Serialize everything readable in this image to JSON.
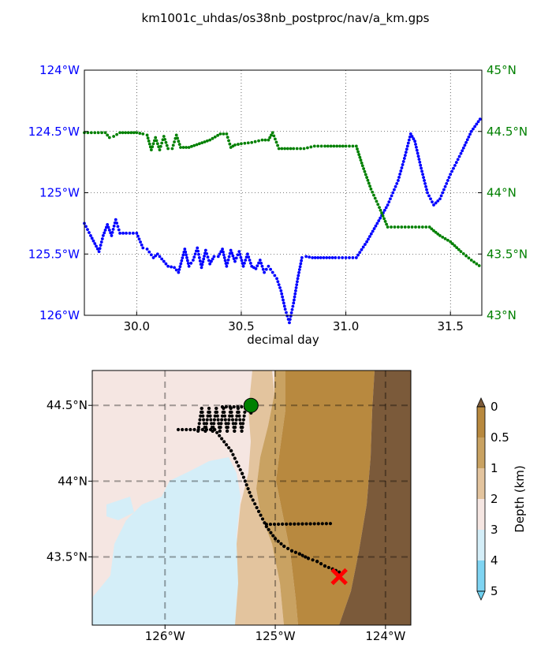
{
  "title": "km1001c_uhdas/os38nb_postproc/nav/a_km.gps",
  "chart_data": [
    {
      "type": "line",
      "xlabel": "decimal day",
      "xlim": [
        29.75,
        31.65
      ],
      "x_ticks": [
        30.0,
        30.5,
        31.0,
        31.5
      ],
      "x_tick_labels": [
        "30.0",
        "30.5",
        "31.0",
        "31.5"
      ],
      "grid": true,
      "left_axis": {
        "color": "#0000ff",
        "lim": [
          -126.0,
          -124.0
        ],
        "tick_values": [
          -124.0,
          -124.5,
          -125.0,
          -125.5,
          -126.0
        ],
        "tick_labels": [
          "124°W",
          "124.5°W",
          "125°W",
          "125.5°W",
          "126°W"
        ]
      },
      "right_axis": {
        "color": "#008000",
        "lim": [
          43.0,
          45.0
        ],
        "tick_values": [
          45.0,
          44.5,
          44.0,
          43.5,
          43.0
        ],
        "tick_labels": [
          "45°N",
          "44.5°N",
          "44°N",
          "43.5°N",
          "43°N"
        ]
      },
      "series": [
        {
          "axis": "left",
          "color": "#0000ff",
          "x": [
            29.75,
            29.78,
            29.82,
            29.84,
            29.86,
            29.88,
            29.9,
            29.92,
            29.95,
            30.0,
            30.03,
            30.05,
            30.08,
            30.1,
            30.13,
            30.15,
            30.18,
            30.2,
            30.23,
            30.25,
            30.27,
            30.29,
            30.31,
            30.33,
            30.35,
            30.37,
            30.39,
            30.41,
            30.43,
            30.45,
            30.47,
            30.49,
            30.51,
            30.53,
            30.55,
            30.57,
            30.59,
            30.61,
            30.63,
            30.65,
            30.67,
            30.69,
            30.71,
            30.73,
            30.75,
            30.77,
            30.79,
            30.81,
            30.84,
            30.88,
            30.95,
            31.0,
            31.05,
            31.1,
            31.15,
            31.2,
            31.25,
            31.28,
            31.31,
            31.33,
            31.36,
            31.39,
            31.42,
            31.45,
            31.5,
            31.55,
            31.6,
            31.65
          ],
          "y": [
            -125.25,
            -125.35,
            -125.48,
            -125.35,
            -125.26,
            -125.35,
            -125.22,
            -125.33,
            -125.33,
            -125.33,
            -125.45,
            -125.46,
            -125.53,
            -125.5,
            -125.56,
            -125.6,
            -125.61,
            -125.65,
            -125.46,
            -125.6,
            -125.55,
            -125.45,
            -125.61,
            -125.47,
            -125.58,
            -125.52,
            -125.52,
            -125.46,
            -125.6,
            -125.47,
            -125.56,
            -125.48,
            -125.6,
            -125.5,
            -125.6,
            -125.62,
            -125.55,
            -125.65,
            -125.6,
            -125.65,
            -125.7,
            -125.8,
            -125.95,
            -126.06,
            -125.9,
            -125.7,
            -125.53,
            -125.52,
            -125.53,
            -125.53,
            -125.53,
            -125.53,
            -125.53,
            -125.4,
            -125.25,
            -125.1,
            -124.9,
            -124.72,
            -124.52,
            -124.58,
            -124.8,
            -125.0,
            -125.1,
            -125.05,
            -124.85,
            -124.68,
            -124.5,
            -124.38
          ]
        },
        {
          "axis": "right",
          "color": "#008000",
          "x": [
            29.75,
            29.8,
            29.85,
            29.87,
            29.89,
            29.92,
            29.96,
            30.0,
            30.03,
            30.05,
            30.07,
            30.09,
            30.11,
            30.13,
            30.15,
            30.17,
            30.19,
            30.21,
            30.25,
            30.3,
            30.35,
            30.4,
            30.43,
            30.45,
            30.47,
            30.5,
            30.55,
            30.6,
            30.63,
            30.65,
            30.68,
            30.75,
            30.8,
            30.85,
            30.9,
            31.0,
            31.05,
            31.08,
            31.12,
            31.16,
            31.2,
            31.25,
            31.3,
            31.35,
            31.4,
            31.42,
            31.45,
            31.5,
            31.55,
            31.6,
            31.65
          ],
          "y": [
            44.49,
            44.49,
            44.49,
            44.45,
            44.46,
            44.49,
            44.49,
            44.49,
            44.48,
            44.47,
            44.35,
            44.45,
            44.35,
            44.46,
            44.36,
            44.36,
            44.47,
            44.37,
            44.37,
            44.4,
            44.43,
            44.48,
            44.48,
            44.37,
            44.39,
            44.4,
            44.41,
            44.43,
            44.43,
            44.49,
            44.36,
            44.36,
            44.36,
            44.38,
            44.38,
            44.38,
            44.38,
            44.22,
            44.03,
            43.88,
            43.72,
            43.72,
            43.72,
            43.72,
            43.72,
            43.69,
            43.65,
            43.6,
            43.52,
            43.45,
            43.39
          ]
        }
      ]
    },
    {
      "type": "map",
      "colorbar": {
        "label": "Depth (km)",
        "tick_labels": [
          "0",
          "0.5",
          "1",
          "2",
          "3",
          "4",
          "5"
        ],
        "colors": [
          "#b8893f",
          "#c9a262",
          "#e3c49e",
          "#f5e6e2",
          "#d4eef8",
          "#7fd4f2"
        ],
        "extend_colors": [
          "#7b5a3a",
          "#6fd0ef"
        ]
      },
      "x_tick_labels": [
        "126°W",
        "125°W",
        "124°W"
      ],
      "y_tick_labels": [
        "44.5°N",
        "44°N",
        "43.5°N"
      ],
      "xlim": [
        -126.66,
        -123.77
      ],
      "ylim": [
        43.05,
        44.73
      ],
      "track": {
        "lon": [
          -125.88,
          -125.55,
          -125.4,
          -125.3,
          -125.22,
          -125.15,
          -125.08,
          -125.0,
          -124.92,
          -124.85,
          -124.78,
          -124.7,
          -124.62,
          -124.55,
          -124.48,
          -124.42
        ],
        "lat": [
          44.34,
          44.34,
          44.2,
          44.05,
          43.9,
          43.8,
          43.7,
          43.62,
          43.57,
          43.54,
          43.52,
          43.49,
          43.47,
          43.44,
          43.42,
          43.4
        ]
      },
      "start_marker": {
        "lon": -125.22,
        "lat": 44.5,
        "color": "#008000"
      },
      "end_marker": {
        "lon": -124.42,
        "lat": 43.37,
        "color": "#ff0000"
      }
    }
  ]
}
